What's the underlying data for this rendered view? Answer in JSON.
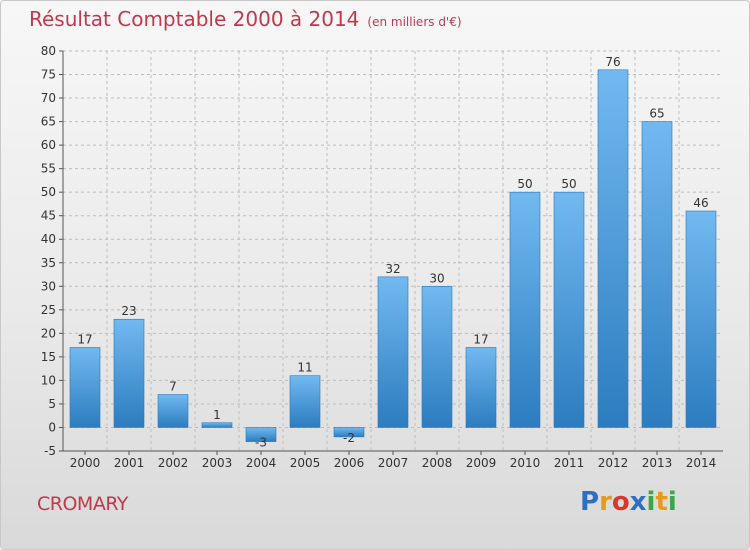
{
  "title": "Résultat Comptable 2000 à 2014",
  "subtitle": "(en milliers d'€)",
  "commune": "CROMARY",
  "logo": {
    "letters": [
      "P",
      "r",
      "o",
      "x",
      "i",
      "t",
      "i"
    ],
    "colors": [
      "#2f6fc0",
      "#e89a1c",
      "#d63a2f",
      "#2f6fc0",
      "#3aa64a",
      "#e89a1c",
      "#3aa64a"
    ]
  },
  "colors": {
    "title": "#c0394b",
    "bar_light": "#6fb6ee",
    "bar_dark": "#2f7fc0",
    "axis": "#555555",
    "grid": "#bdbdbd"
  },
  "chart_data": {
    "type": "bar",
    "categories": [
      "2000",
      "2001",
      "2002",
      "2003",
      "2004",
      "2005",
      "2006",
      "2007",
      "2008",
      "2009",
      "2010",
      "2011",
      "2012",
      "2013",
      "2014"
    ],
    "values": [
      17,
      23,
      7,
      1,
      -3,
      11,
      -2,
      32,
      30,
      17,
      50,
      50,
      76,
      65,
      46
    ],
    "ylim": [
      -5,
      80
    ],
    "yticks": [
      -5,
      0,
      5,
      10,
      15,
      20,
      25,
      30,
      35,
      40,
      45,
      50,
      55,
      60,
      65,
      70,
      75,
      80
    ],
    "grid": true
  }
}
